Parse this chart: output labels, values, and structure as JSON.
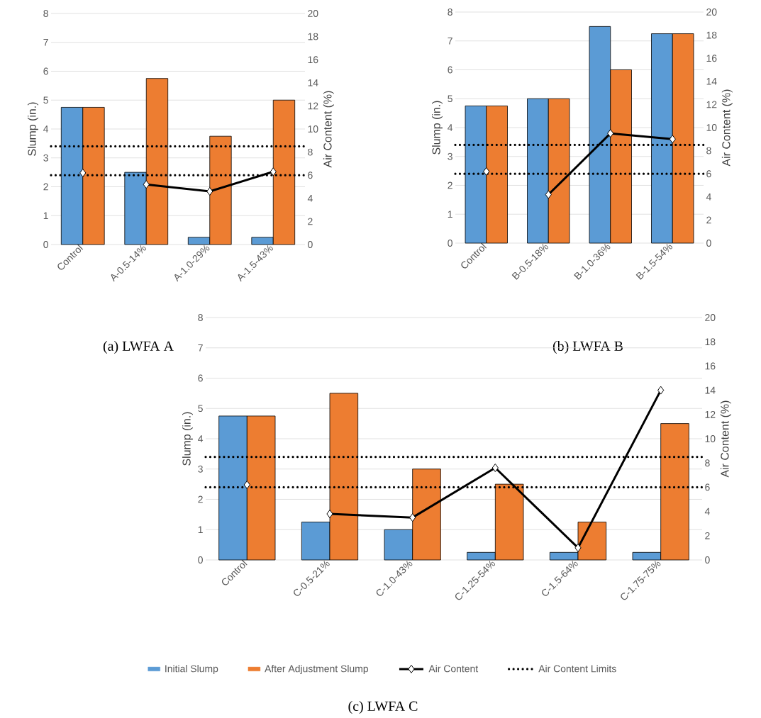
{
  "chart_data": [
    {
      "type": "bar",
      "categories": [
        "Control",
        "A-0.5-14%",
        "A-1.0-29%",
        "A-1.5-43%"
      ],
      "series": [
        {
          "color": "#5b9bd5",
          "values": [
            4.75,
            2.5,
            0.25,
            0.25
          ]
        },
        {
          "color": "#ed7d31",
          "values": [
            4.75,
            5.75,
            3.75,
            5.0
          ]
        },
        {
          "type": "line",
          "axis": "y2",
          "color": "#000000",
          "values": [
            null,
            5.2,
            4.6,
            6.3
          ]
        },
        {
          "type": "line",
          "axis": "y2",
          "color": "#000000",
          "values": [
            6.2,
            null,
            null,
            null
          ]
        }
      ],
      "ylabel": "Slump (in.)",
      "y2label": "Air Content (%)",
      "ylim": [
        0,
        8
      ],
      "yticks": [
        0,
        1,
        2,
        3,
        4,
        5,
        6,
        7,
        8
      ],
      "y2lim": [
        0,
        20
      ],
      "y2ticks": [
        0,
        2,
        4,
        6,
        8,
        10,
        12,
        14,
        16,
        18,
        20
      ],
      "ref_lines": [
        {
          "axis": "y2",
          "value": 8.5,
          "line_style": "dotted",
          "color": "#000000"
        },
        {
          "axis": "y2",
          "value": 6,
          "line_style": "dotted",
          "color": "#000000"
        }
      ],
      "grid": "y",
      "marker": "diamond",
      "annotations": [
        "(a) LWFA A"
      ]
    },
    {
      "type": "bar",
      "categories": [
        "Control",
        "B-0.5-18%",
        "B-1.0-36%",
        "B-1.5-54%"
      ],
      "series": [
        {
          "color": "#5b9bd5",
          "values": [
            4.75,
            5.0,
            7.5,
            7.25
          ]
        },
        {
          "color": "#ed7d31",
          "values": [
            4.75,
            5.0,
            6.0,
            7.25
          ]
        },
        {
          "type": "line",
          "axis": "y2",
          "color": "#000000",
          "values": [
            null,
            4.2,
            9.5,
            9.0
          ]
        },
        {
          "type": "line",
          "axis": "y2",
          "color": "#000000",
          "values": [
            6.2,
            null,
            null,
            null
          ]
        }
      ],
      "ylabel": "Slump (in.)",
      "y2label": "Air Content (%)",
      "ylim": [
        0,
        8
      ],
      "yticks": [
        0,
        1,
        2,
        3,
        4,
        5,
        6,
        7,
        8
      ],
      "y2lim": [
        0,
        20
      ],
      "y2ticks": [
        0,
        2,
        4,
        6,
        8,
        10,
        12,
        14,
        16,
        18,
        20
      ],
      "ref_lines": [
        {
          "axis": "y2",
          "value": 8.5,
          "line_style": "dotted",
          "color": "#000000"
        },
        {
          "axis": "y2",
          "value": 6,
          "line_style": "dotted",
          "color": "#000000"
        }
      ],
      "grid": "y",
      "marker": "diamond",
      "annotations": [
        "(b) LWFA B"
      ]
    },
    {
      "type": "bar",
      "categories": [
        "Control",
        "C-0.5-21%",
        "C-1.0-43%",
        "C-1.25-54%",
        "C-1.5-64%",
        "C-1.75-75%"
      ],
      "series": [
        {
          "name": "Initial Slump",
          "color": "#5b9bd5",
          "values": [
            4.75,
            1.25,
            1.0,
            0.25,
            0.25,
            0.25
          ]
        },
        {
          "name": "After Adjustment Slump",
          "color": "#ed7d31",
          "values": [
            4.75,
            5.5,
            3.0,
            2.5,
            1.25,
            4.5
          ]
        },
        {
          "name": "Air Content",
          "type": "line",
          "axis": "y2",
          "color": "#000000",
          "values": [
            null,
            3.8,
            3.5,
            7.6,
            1.0,
            14.0
          ]
        },
        {
          "type": "line",
          "axis": "y2",
          "color": "#000000",
          "values": [
            6.2,
            null,
            null,
            null,
            null,
            null
          ]
        }
      ],
      "ylabel": "Slump (in.)",
      "y2label": "Air Content (%)",
      "ylim": [
        0,
        8
      ],
      "yticks": [
        0,
        1,
        2,
        3,
        4,
        5,
        6,
        7,
        8
      ],
      "y2lim": [
        0,
        20
      ],
      "y2ticks": [
        0,
        2,
        4,
        6,
        8,
        10,
        12,
        14,
        16,
        18,
        20
      ],
      "ref_lines": [
        {
          "axis": "y2",
          "value": 8.5,
          "line_style": "dotted",
          "color": "#000000",
          "label": "Air Content Limits"
        },
        {
          "axis": "y2",
          "value": 6,
          "line_style": "dotted",
          "color": "#000000"
        }
      ],
      "grid": "y",
      "marker": "diamond",
      "legend": "bottom",
      "annotations": [
        "(c) LWFA C"
      ]
    }
  ]
}
